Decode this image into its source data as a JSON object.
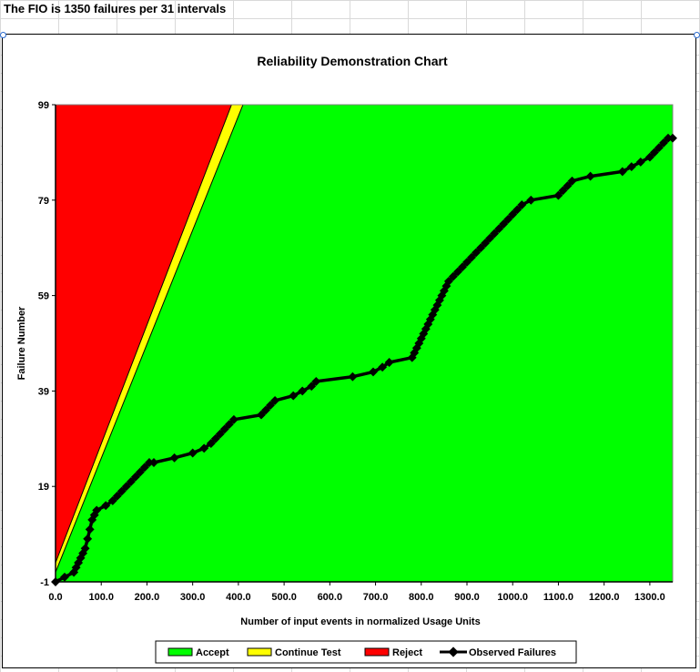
{
  "sheet": {
    "header_text": "The FIO is 1350 failures per 31 intervals"
  },
  "chart_data": {
    "type": "area",
    "title": "Reliability Demonstration Chart",
    "xlabel": "Number of input events in normalized Usage Units",
    "ylabel": "Failure Number",
    "xlim": [
      0,
      1350
    ],
    "ylim": [
      -1,
      99
    ],
    "x_ticks": [
      0,
      100,
      200,
      300,
      400,
      500,
      600,
      700,
      800,
      900,
      1000,
      1100,
      1200,
      1300
    ],
    "x_tick_labels": [
      "0.0",
      "100.0",
      "200.0",
      "300.0",
      "400.0",
      "500.0",
      "600.0",
      "700.0",
      "800.0",
      "900.0",
      "1000.0",
      "1100.0",
      "1200.0",
      "1300.0"
    ],
    "y_ticks": [
      -1,
      19,
      39,
      59,
      79,
      99
    ],
    "y_tick_labels": [
      "-1",
      "19",
      "39",
      "59",
      "79",
      "99"
    ],
    "regions": [
      {
        "name": "Accept",
        "color": "#00ff00"
      },
      {
        "name": "Continue Test",
        "color": "#ffff00",
        "boundary_low": [
          [
            0,
            1
          ],
          [
            410,
            99
          ]
        ],
        "boundary_high": [
          [
            0,
            3
          ],
          [
            385,
            99
          ]
        ]
      },
      {
        "name": "Reject",
        "color": "#ff0000"
      }
    ],
    "legend": {
      "position": "bottom",
      "entries": [
        "Accept",
        "Continue Test",
        "Reject",
        "Observed Failures"
      ]
    },
    "series": [
      {
        "name": "Observed Failures",
        "color": "#000000",
        "x": [
          0,
          20,
          40,
          45,
          50,
          55,
          60,
          65,
          70,
          75,
          80,
          85,
          90,
          110,
          125,
          135,
          145,
          155,
          165,
          175,
          185,
          195,
          205,
          215,
          260,
          300,
          325,
          340,
          350,
          360,
          370,
          380,
          390,
          450,
          460,
          470,
          480,
          520,
          540,
          560,
          570,
          650,
          695,
          715,
          730,
          780,
          785,
          790,
          795,
          800,
          805,
          810,
          815,
          820,
          825,
          830,
          835,
          840,
          845,
          850,
          855,
          860,
          870,
          880,
          890,
          900,
          910,
          920,
          930,
          940,
          950,
          960,
          970,
          980,
          990,
          1000,
          1010,
          1020,
          1040,
          1100,
          1110,
          1120,
          1130,
          1170,
          1240,
          1260,
          1280,
          1300,
          1310,
          1320,
          1330,
          1340,
          1350
        ],
        "y": [
          -1,
          0,
          1,
          2,
          3,
          4,
          5,
          6,
          8,
          10,
          12,
          13,
          14,
          15,
          16,
          17,
          18,
          19,
          20,
          21,
          22,
          23,
          24,
          24,
          25,
          26,
          27,
          28,
          29,
          30,
          31,
          32,
          33,
          34,
          35,
          36,
          37,
          38,
          39,
          40,
          41,
          42,
          43,
          44,
          45,
          46,
          47,
          48,
          49,
          50,
          51,
          52,
          53,
          54,
          55,
          56,
          57,
          58,
          59,
          60,
          61,
          62,
          63,
          64,
          65,
          66,
          67,
          68,
          69,
          70,
          71,
          72,
          73,
          74,
          75,
          76,
          77,
          78,
          79,
          80,
          81,
          82,
          83,
          84,
          85,
          86,
          87,
          88,
          89,
          90,
          91,
          92,
          92
        ]
      }
    ]
  }
}
